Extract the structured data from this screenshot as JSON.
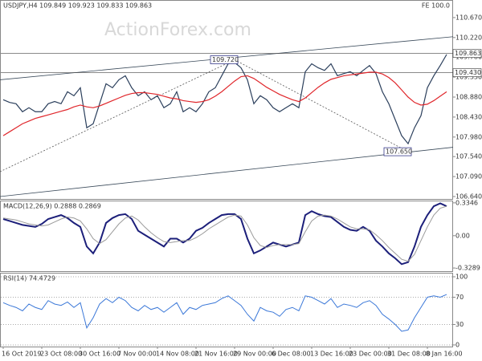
{
  "chart_data": [
    {
      "type": "line",
      "title": "USDJPY,H4  109.849 109.923 109.833 109.863",
      "watermark": "ActionForex.com",
      "corner_label": "FE 100.0",
      "ylim": [
        106.586,
        111.066
      ],
      "yticks": [
        {
          "value": 110.67,
          "label": "110.670"
        },
        {
          "value": 110.22,
          "label": "110.220"
        },
        {
          "value": 109.78,
          "label": "109.780"
        },
        {
          "value": 109.33,
          "label": "109.330"
        },
        {
          "value": 108.88,
          "label": "108.880"
        },
        {
          "value": 108.43,
          "label": "108.430"
        },
        {
          "value": 107.98,
          "label": "107.980"
        },
        {
          "value": 107.54,
          "label": "107.540"
        },
        {
          "value": 107.09,
          "label": "107.090"
        },
        {
          "value": 106.64,
          "label": "106.640"
        }
      ],
      "grid": false,
      "series": [
        {
          "color": "#2b3f5c",
          "values": [
            108.82,
            108.76,
            108.73,
            108.55,
            108.64,
            108.55,
            108.55,
            108.73,
            108.78,
            108.73,
            109.0,
            108.91,
            109.09,
            108.19,
            108.28,
            108.73,
            109.18,
            109.09,
            109.27,
            109.36,
            109.09,
            108.91,
            109.0,
            108.82,
            108.91,
            108.64,
            108.73,
            109.0,
            108.55,
            108.64,
            108.55,
            108.73,
            109.0,
            109.09,
            109.36,
            109.63,
            109.66,
            109.54,
            109.27,
            108.73,
            108.91,
            108.82,
            108.64,
            108.55,
            108.64,
            108.73,
            108.64,
            109.45,
            109.63,
            109.54,
            109.48,
            109.63,
            109.36,
            109.41,
            109.45,
            109.36,
            109.48,
            109.59,
            109.41,
            109.0,
            108.73,
            108.37,
            108.01,
            107.83,
            108.19,
            108.46,
            109.09,
            109.36,
            109.59,
            109.84
          ]
        },
        {
          "color": "#e0262b",
          "values": [
            108.01,
            108.1,
            108.19,
            108.28,
            108.34,
            108.4,
            108.44,
            108.48,
            108.52,
            108.56,
            108.6,
            108.66,
            108.7,
            108.66,
            108.64,
            108.68,
            108.74,
            108.8,
            108.86,
            108.92,
            108.96,
            108.98,
            108.98,
            108.96,
            108.94,
            108.9,
            108.86,
            108.84,
            108.8,
            108.78,
            108.76,
            108.78,
            108.82,
            108.9,
            109.0,
            109.12,
            109.24,
            109.34,
            109.36,
            109.3,
            109.2,
            109.1,
            109.02,
            108.94,
            108.88,
            108.82,
            108.78,
            108.86,
            108.98,
            109.1,
            109.2,
            109.28,
            109.32,
            109.36,
            109.38,
            109.4,
            109.42,
            109.44,
            109.44,
            109.4,
            109.32,
            109.2,
            109.04,
            108.88,
            108.76,
            108.7,
            108.72,
            108.8,
            108.9,
            109.0
          ]
        }
      ],
      "trendlines": [
        {
          "style": "solid",
          "x": [
            -0.5,
            70
          ],
          "y": [
            109.27,
            110.24
          ]
        },
        {
          "style": "solid",
          "x": [
            -0.5,
            70
          ],
          "y": [
            106.64,
            107.75
          ]
        },
        {
          "style": "dotted",
          "x": [
            -0.5,
            36
          ],
          "y": [
            107.2,
            109.72
          ]
        },
        {
          "style": "dotted",
          "x": [
            36,
            63
          ],
          "y": [
            109.72,
            107.65
          ]
        }
      ],
      "hlines": [
        {
          "value": 109.863,
          "label": "109.863"
        },
        {
          "value": 109.43,
          "label": "109.430"
        }
      ],
      "annotations": [
        {
          "label": "109.720",
          "value": 109.72,
          "x": 36
        },
        {
          "label": "107.650",
          "value": 107.65,
          "x": 63
        }
      ]
    },
    {
      "type": "line",
      "title": "MACD(12,26,9) 0.2888 0.2869",
      "ylim": [
        -0.361,
        0.358
      ],
      "yticks": [
        0.3346,
        {
          "value": 0,
          "label": "0.00"
        },
        -0.3289
      ],
      "grid": false,
      "series": [
        {
          "color": "#1c1f7a",
          "width": 2,
          "values": [
            0.17,
            0.15,
            0.13,
            0.11,
            0.1,
            0.09,
            0.12,
            0.17,
            0.19,
            0.21,
            0.18,
            0.13,
            0.09,
            -0.11,
            -0.18,
            -0.07,
            0.13,
            0.18,
            0.21,
            0.22,
            0.17,
            0.05,
            0.01,
            -0.03,
            -0.07,
            -0.11,
            -0.03,
            -0.03,
            -0.07,
            -0.03,
            0.05,
            0.08,
            0.13,
            0.17,
            0.21,
            0.22,
            0.22,
            0.17,
            -0.03,
            -0.18,
            -0.15,
            -0.11,
            -0.07,
            -0.09,
            -0.11,
            -0.09,
            -0.07,
            0.21,
            0.25,
            0.22,
            0.2,
            0.19,
            0.14,
            0.09,
            0.06,
            0.05,
            0.09,
            0.05,
            -0.05,
            -0.11,
            -0.18,
            -0.23,
            -0.29,
            -0.27,
            -0.11,
            0.09,
            0.21,
            0.3,
            0.33,
            0.3
          ]
        },
        {
          "color": "#9a9a9a",
          "width": 1,
          "values": [
            0.18,
            0.17,
            0.16,
            0.14,
            0.12,
            0.11,
            0.1,
            0.11,
            0.14,
            0.17,
            0.19,
            0.18,
            0.15,
            0.07,
            -0.03,
            -0.08,
            -0.04,
            0.04,
            0.12,
            0.18,
            0.2,
            0.16,
            0.09,
            0.03,
            -0.02,
            -0.06,
            -0.07,
            -0.06,
            -0.05,
            -0.05,
            -0.02,
            0.02,
            0.07,
            0.11,
            0.15,
            0.19,
            0.21,
            0.2,
            0.11,
            -0.02,
            -0.1,
            -0.12,
            -0.1,
            -0.09,
            -0.09,
            -0.09,
            -0.08,
            0.04,
            0.15,
            0.2,
            0.21,
            0.2,
            0.17,
            0.13,
            0.09,
            0.07,
            0.07,
            0.06,
            0.01,
            -0.05,
            -0.12,
            -0.18,
            -0.24,
            -0.26,
            -0.19,
            -0.05,
            0.09,
            0.21,
            0.28,
            0.3
          ]
        }
      ]
    },
    {
      "type": "line",
      "title": "RSI(14) 74.4729",
      "ylim": [
        -2.4,
        105.9
      ],
      "yticks": [
        100,
        70,
        30,
        0
      ],
      "grid": true,
      "series": [
        {
          "color": "#3b78d8",
          "width": 1,
          "values": [
            62,
            58,
            55,
            50,
            60,
            55,
            52,
            65,
            60,
            58,
            63,
            55,
            62,
            25,
            40,
            60,
            68,
            62,
            70,
            65,
            55,
            50,
            58,
            52,
            55,
            48,
            55,
            62,
            45,
            55,
            52,
            58,
            60,
            62,
            68,
            72,
            65,
            58,
            45,
            35,
            55,
            50,
            48,
            42,
            52,
            55,
            50,
            72,
            70,
            65,
            60,
            68,
            55,
            60,
            58,
            55,
            62,
            65,
            58,
            45,
            38,
            30,
            20,
            22,
            40,
            55,
            70,
            72,
            70,
            74
          ]
        }
      ],
      "categories": [
        "16 Oct 2019",
        null,
        null,
        null,
        null,
        null,
        "23 Oct 08:00",
        null,
        null,
        null,
        null,
        null,
        "30 Oct 16:00",
        null,
        null,
        null,
        null,
        null,
        "7 Nov 00:00",
        null,
        null,
        null,
        null,
        null,
        "14 Nov 08:00",
        null,
        null,
        null,
        null,
        null,
        "21 Nov 16:00",
        null,
        null,
        null,
        null,
        null,
        "29 Nov 00:00",
        null,
        null,
        null,
        null,
        null,
        "6 Dec 08:00",
        null,
        null,
        null,
        null,
        null,
        "13 Dec 16:00",
        null,
        null,
        null,
        null,
        null,
        "23 Dec 00:00",
        null,
        null,
        null,
        null,
        null,
        "31 Dec 08:00",
        null,
        null,
        null,
        null,
        null,
        "8 Jan 16:00",
        null,
        null,
        null
      ]
    }
  ]
}
